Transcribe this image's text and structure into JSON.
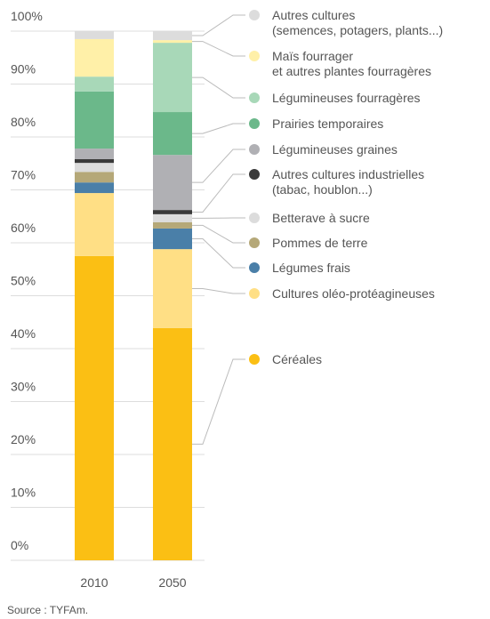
{
  "chart_data": {
    "type": "stacked_bar",
    "categories": [
      "2010",
      "2050"
    ],
    "series": [
      {
        "name": "Céréales",
        "color": "#fbbf14",
        "values": [
          57.5,
          43.9
        ]
      },
      {
        "name": "Cultures oléo-protéagineuses",
        "color": "#ffdf85",
        "values": [
          11.9,
          14.9
        ]
      },
      {
        "name": "Légumes frais",
        "color": "#4a7fa8",
        "values": [
          2.0,
          3.9
        ]
      },
      {
        "name": "Pommes de terre",
        "color": "#b5a878",
        "values": [
          2.0,
          1.2
        ]
      },
      {
        "name": "Betterave à sucre",
        "color": "#dcdcdc",
        "values": [
          1.7,
          1.5
        ]
      },
      {
        "name": "Autres cultures industrielles\n(tabac, houblon...)",
        "color": "#3a3a3a",
        "values": [
          0.7,
          0.8
        ]
      },
      {
        "name": "Légumineuses graines",
        "color": "#b0b0b4",
        "values": [
          2.0,
          10.4
        ]
      },
      {
        "name": "Prairies temporaires",
        "color": "#6bb88a",
        "values": [
          10.8,
          8.1
        ]
      },
      {
        "name": "Légumineuses fourragères",
        "color": "#a8d8b8",
        "values": [
          2.8,
          13.1
        ]
      },
      {
        "name": "Maïs fourrager\net autres plantes fourragères",
        "color": "#fff0a8",
        "values": [
          7.1,
          0.5
        ]
      },
      {
        "name": "Autres cultures\n(semences, potagers, plants...)",
        "color": "#dcdcdc",
        "values": [
          1.5,
          1.7
        ]
      }
    ],
    "ylim": [
      0,
      100
    ],
    "yticks": [
      {
        "value": 0,
        "label": "0%"
      },
      {
        "value": 10,
        "label": "10%"
      },
      {
        "value": 20,
        "label": "20%"
      },
      {
        "value": 30,
        "label": "30%"
      },
      {
        "value": 40,
        "label": "40%"
      },
      {
        "value": 50,
        "label": "50%"
      },
      {
        "value": 60,
        "label": "60%"
      },
      {
        "value": 70,
        "label": "70%"
      },
      {
        "value": 80,
        "label": "80%"
      },
      {
        "value": 90,
        "label": "90%"
      },
      {
        "value": 100,
        "label": "100%"
      }
    ],
    "grid": true,
    "source": "Source : TYFAm."
  }
}
